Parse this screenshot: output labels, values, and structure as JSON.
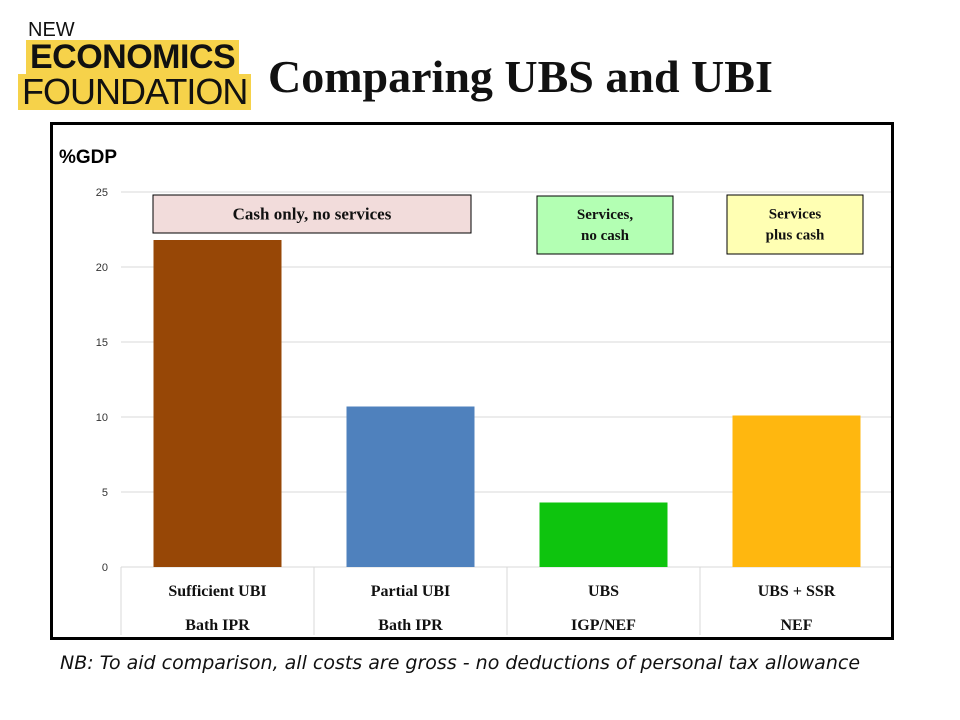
{
  "logo": {
    "line1": "NEW",
    "line2": "ECONOMICS",
    "line3": "FOUNDATION",
    "accent": "#f6d24a"
  },
  "page": {
    "title": "Comparing UBS and UBI",
    "footnote": "NB: To aid comparison, all costs are gross - no deductions of personal tax allowance"
  },
  "chart_data": {
    "type": "bar",
    "title": "",
    "ylabel": "%GDP",
    "xlabel": "",
    "ylim": [
      0,
      25
    ],
    "yticks": [
      0,
      5,
      10,
      15,
      20,
      25
    ],
    "grid": true,
    "categories": [
      {
        "name": "Sufficient UBI",
        "source": "Bath IPR",
        "value": 21.8,
        "color": "#974706"
      },
      {
        "name": "Partial UBI",
        "source": "Bath IPR",
        "value": 10.7,
        "color": "#4f81bd"
      },
      {
        "name": "UBS",
        "source": "IGP/NEF",
        "value": 4.3,
        "color": "#0ec40e"
      },
      {
        "name": "UBS + SSR",
        "source": "NEF",
        "value": 10.1,
        "color": "#ffb70f"
      }
    ],
    "annotations": [
      {
        "lines": [
          "Cash only, no services"
        ],
        "background": "#f2dcdb"
      },
      {
        "lines": [
          "Services,",
          "no cash"
        ],
        "background": "#b3ffb3"
      },
      {
        "lines": [
          "Services",
          "plus cash"
        ],
        "background": "#ffffb3"
      }
    ]
  }
}
